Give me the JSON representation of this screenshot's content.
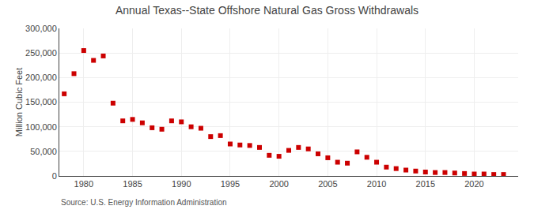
{
  "chart_data": {
    "type": "scatter",
    "title": "Annual Texas--State Offshore Natural Gas Gross Withdrawals",
    "ylabel": "Million Cubic Feet",
    "annotations": [
      "Source: U.S. Energy Information Administration"
    ],
    "color": "#cc0000",
    "marker": "square",
    "grid": true,
    "xlim": [
      1977.5,
      2024.5
    ],
    "ylim": [
      0,
      300000
    ],
    "xticks": [
      1980,
      1985,
      1990,
      1995,
      2000,
      2005,
      2010,
      2015,
      2020
    ],
    "yticks": [
      0,
      {
        "value": 50000,
        "label": "50,000"
      },
      {
        "value": 100000,
        "label": "100,000"
      },
      {
        "value": 150000,
        "label": "150,000"
      },
      {
        "value": 200000,
        "label": "200,000"
      },
      {
        "value": 250000,
        "label": "250,000"
      },
      {
        "value": 300000,
        "label": "300,000"
      }
    ],
    "x": [
      1978,
      1979,
      1980,
      1981,
      1982,
      1983,
      1984,
      1985,
      1986,
      1987,
      1988,
      1989,
      1990,
      1991,
      1992,
      1993,
      1994,
      1995,
      1996,
      1997,
      1998,
      1999,
      2000,
      2001,
      2002,
      2003,
      2004,
      2005,
      2006,
      2007,
      2008,
      2009,
      2010,
      2011,
      2012,
      2013,
      2014,
      2015,
      2016,
      2017,
      2018,
      2019,
      2020,
      2021,
      2022,
      2023
    ],
    "values": [
      167000,
      208000,
      255000,
      235000,
      244000,
      148000,
      112000,
      115000,
      108000,
      98000,
      95000,
      112000,
      110000,
      100000,
      97000,
      80000,
      82000,
      65000,
      63000,
      62000,
      58000,
      42000,
      40000,
      52000,
      58000,
      55000,
      45000,
      37000,
      28000,
      26000,
      49000,
      38000,
      28000,
      18000,
      15000,
      12000,
      10000,
      8000,
      7000,
      7000,
      6000,
      5000,
      4000,
      4000,
      3000,
      3000
    ]
  }
}
